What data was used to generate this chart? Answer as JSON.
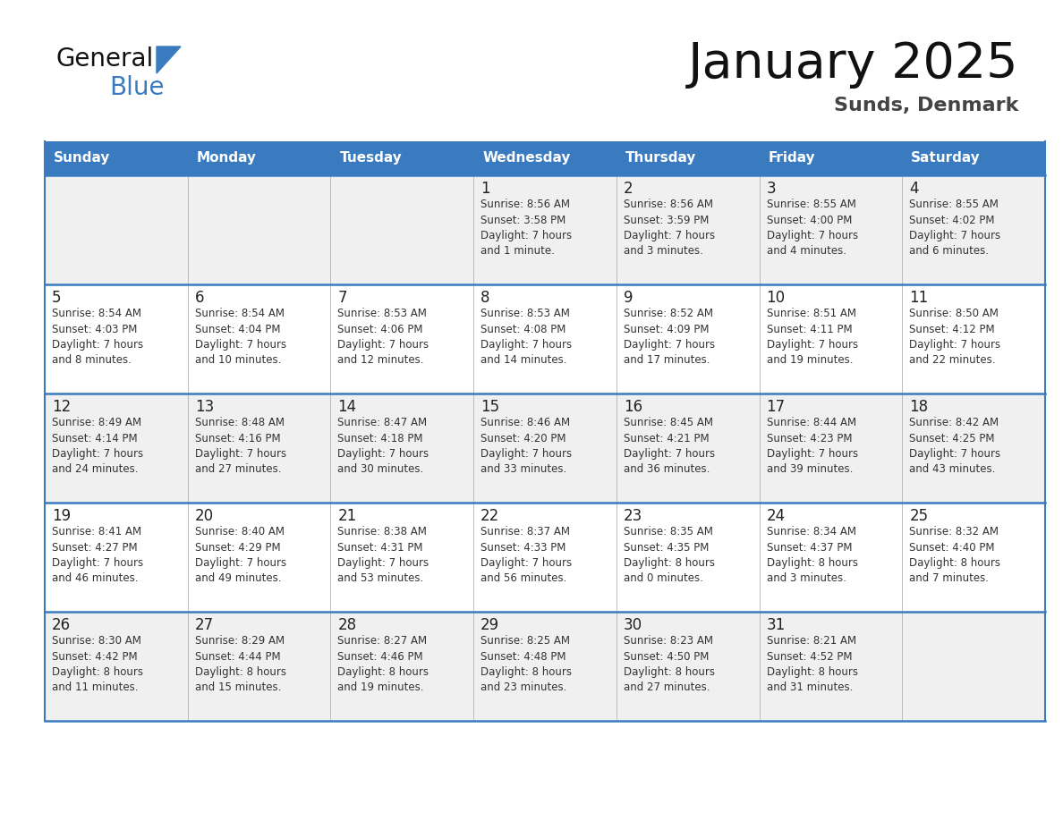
{
  "title": "January 2025",
  "subtitle": "Sunds, Denmark",
  "days_of_week": [
    "Sunday",
    "Monday",
    "Tuesday",
    "Wednesday",
    "Thursday",
    "Friday",
    "Saturday"
  ],
  "header_bg": "#3a7abf",
  "header_text": "#ffffff",
  "row_bg_odd": "#f0f0f0",
  "row_bg_even": "#ffffff",
  "day_number_color": "#222222",
  "text_color": "#333333",
  "line_color": "#3a7abf",
  "logo_general_color": "#111111",
  "logo_blue_color": "#3a7abf",
  "calendar_data": [
    [
      {
        "day": "",
        "info": ""
      },
      {
        "day": "",
        "info": ""
      },
      {
        "day": "",
        "info": ""
      },
      {
        "day": "1",
        "info": "Sunrise: 8:56 AM\nSunset: 3:58 PM\nDaylight: 7 hours\nand 1 minute."
      },
      {
        "day": "2",
        "info": "Sunrise: 8:56 AM\nSunset: 3:59 PM\nDaylight: 7 hours\nand 3 minutes."
      },
      {
        "day": "3",
        "info": "Sunrise: 8:55 AM\nSunset: 4:00 PM\nDaylight: 7 hours\nand 4 minutes."
      },
      {
        "day": "4",
        "info": "Sunrise: 8:55 AM\nSunset: 4:02 PM\nDaylight: 7 hours\nand 6 minutes."
      }
    ],
    [
      {
        "day": "5",
        "info": "Sunrise: 8:54 AM\nSunset: 4:03 PM\nDaylight: 7 hours\nand 8 minutes."
      },
      {
        "day": "6",
        "info": "Sunrise: 8:54 AM\nSunset: 4:04 PM\nDaylight: 7 hours\nand 10 minutes."
      },
      {
        "day": "7",
        "info": "Sunrise: 8:53 AM\nSunset: 4:06 PM\nDaylight: 7 hours\nand 12 minutes."
      },
      {
        "day": "8",
        "info": "Sunrise: 8:53 AM\nSunset: 4:08 PM\nDaylight: 7 hours\nand 14 minutes."
      },
      {
        "day": "9",
        "info": "Sunrise: 8:52 AM\nSunset: 4:09 PM\nDaylight: 7 hours\nand 17 minutes."
      },
      {
        "day": "10",
        "info": "Sunrise: 8:51 AM\nSunset: 4:11 PM\nDaylight: 7 hours\nand 19 minutes."
      },
      {
        "day": "11",
        "info": "Sunrise: 8:50 AM\nSunset: 4:12 PM\nDaylight: 7 hours\nand 22 minutes."
      }
    ],
    [
      {
        "day": "12",
        "info": "Sunrise: 8:49 AM\nSunset: 4:14 PM\nDaylight: 7 hours\nand 24 minutes."
      },
      {
        "day": "13",
        "info": "Sunrise: 8:48 AM\nSunset: 4:16 PM\nDaylight: 7 hours\nand 27 minutes."
      },
      {
        "day": "14",
        "info": "Sunrise: 8:47 AM\nSunset: 4:18 PM\nDaylight: 7 hours\nand 30 minutes."
      },
      {
        "day": "15",
        "info": "Sunrise: 8:46 AM\nSunset: 4:20 PM\nDaylight: 7 hours\nand 33 minutes."
      },
      {
        "day": "16",
        "info": "Sunrise: 8:45 AM\nSunset: 4:21 PM\nDaylight: 7 hours\nand 36 minutes."
      },
      {
        "day": "17",
        "info": "Sunrise: 8:44 AM\nSunset: 4:23 PM\nDaylight: 7 hours\nand 39 minutes."
      },
      {
        "day": "18",
        "info": "Sunrise: 8:42 AM\nSunset: 4:25 PM\nDaylight: 7 hours\nand 43 minutes."
      }
    ],
    [
      {
        "day": "19",
        "info": "Sunrise: 8:41 AM\nSunset: 4:27 PM\nDaylight: 7 hours\nand 46 minutes."
      },
      {
        "day": "20",
        "info": "Sunrise: 8:40 AM\nSunset: 4:29 PM\nDaylight: 7 hours\nand 49 minutes."
      },
      {
        "day": "21",
        "info": "Sunrise: 8:38 AM\nSunset: 4:31 PM\nDaylight: 7 hours\nand 53 minutes."
      },
      {
        "day": "22",
        "info": "Sunrise: 8:37 AM\nSunset: 4:33 PM\nDaylight: 7 hours\nand 56 minutes."
      },
      {
        "day": "23",
        "info": "Sunrise: 8:35 AM\nSunset: 4:35 PM\nDaylight: 8 hours\nand 0 minutes."
      },
      {
        "day": "24",
        "info": "Sunrise: 8:34 AM\nSunset: 4:37 PM\nDaylight: 8 hours\nand 3 minutes."
      },
      {
        "day": "25",
        "info": "Sunrise: 8:32 AM\nSunset: 4:40 PM\nDaylight: 8 hours\nand 7 minutes."
      }
    ],
    [
      {
        "day": "26",
        "info": "Sunrise: 8:30 AM\nSunset: 4:42 PM\nDaylight: 8 hours\nand 11 minutes."
      },
      {
        "day": "27",
        "info": "Sunrise: 8:29 AM\nSunset: 4:44 PM\nDaylight: 8 hours\nand 15 minutes."
      },
      {
        "day": "28",
        "info": "Sunrise: 8:27 AM\nSunset: 4:46 PM\nDaylight: 8 hours\nand 19 minutes."
      },
      {
        "day": "29",
        "info": "Sunrise: 8:25 AM\nSunset: 4:48 PM\nDaylight: 8 hours\nand 23 minutes."
      },
      {
        "day": "30",
        "info": "Sunrise: 8:23 AM\nSunset: 4:50 PM\nDaylight: 8 hours\nand 27 minutes."
      },
      {
        "day": "31",
        "info": "Sunrise: 8:21 AM\nSunset: 4:52 PM\nDaylight: 8 hours\nand 31 minutes."
      },
      {
        "day": "",
        "info": ""
      }
    ]
  ]
}
